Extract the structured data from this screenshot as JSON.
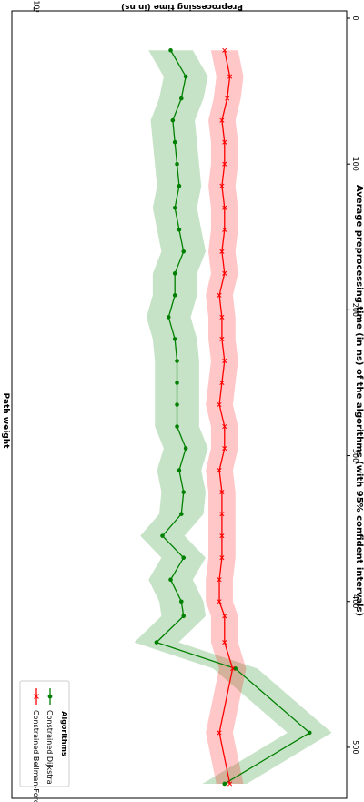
{
  "chart_data": {
    "type": "line",
    "orientation": "rotated-90-clockwise",
    "title": "Average preprocessing time (in ns) of the algorithms (with 95% confident intervals)",
    "xlabel": "Path weight",
    "ylabel": "Preprocessing time (in ns)",
    "x_ticks": [
      0,
      100,
      200,
      300,
      400,
      500
    ],
    "x_tick_labels": [
      "0",
      "100",
      "200",
      "300",
      "400",
      "500"
    ],
    "xlim": [
      -5,
      535
    ],
    "y_scale": "log",
    "y_ticks": [
      1000
    ],
    "y_tick_labels": [
      "10³"
    ],
    "ylim": [
      260,
      1100
    ],
    "grid": false,
    "legend": {
      "title": "Algorithms",
      "placement": "bottom-left",
      "entries": [
        "Constrained Dijkstra",
        "Constrained Bellman-Ford"
      ]
    },
    "series": [
      {
        "name": "Constrained Dijkstra",
        "color": "#008000",
        "marker": "circle",
        "band_width_factor": 1.1,
        "x": [
          22,
          40,
          55,
          70,
          85,
          100,
          115,
          130,
          145,
          160,
          175,
          190,
          205,
          220,
          235,
          250,
          265,
          280,
          295,
          310,
          325,
          340,
          355,
          370,
          385,
          400,
          410,
          428,
          446,
          490,
          525
        ],
        "y": [
          555,
          520,
          530,
          550,
          545,
          540,
          535,
          545,
          535,
          525,
          545,
          545,
          560,
          545,
          540,
          540,
          540,
          540,
          520,
          535,
          525,
          530,
          575,
          525,
          555,
          530,
          525,
          590,
          420,
          305,
          440
        ]
      },
      {
        "name": "Constrained Bellman-Ford",
        "color": "#ff0000",
        "marker": "x",
        "band_width_factor": 1.06,
        "x": [
          22,
          40,
          55,
          70,
          85,
          100,
          115,
          130,
          145,
          160,
          175,
          190,
          205,
          220,
          235,
          250,
          265,
          280,
          295,
          310,
          325,
          340,
          355,
          370,
          385,
          400,
          410,
          428,
          446,
          490,
          525
        ],
        "y": [
          440,
          430,
          435,
          445,
          440,
          440,
          445,
          440,
          440,
          445,
          440,
          450,
          445,
          445,
          440,
          445,
          450,
          440,
          440,
          450,
          445,
          445,
          445,
          445,
          450,
          450,
          440,
          440,
          425,
          450,
          430
        ]
      }
    ]
  }
}
